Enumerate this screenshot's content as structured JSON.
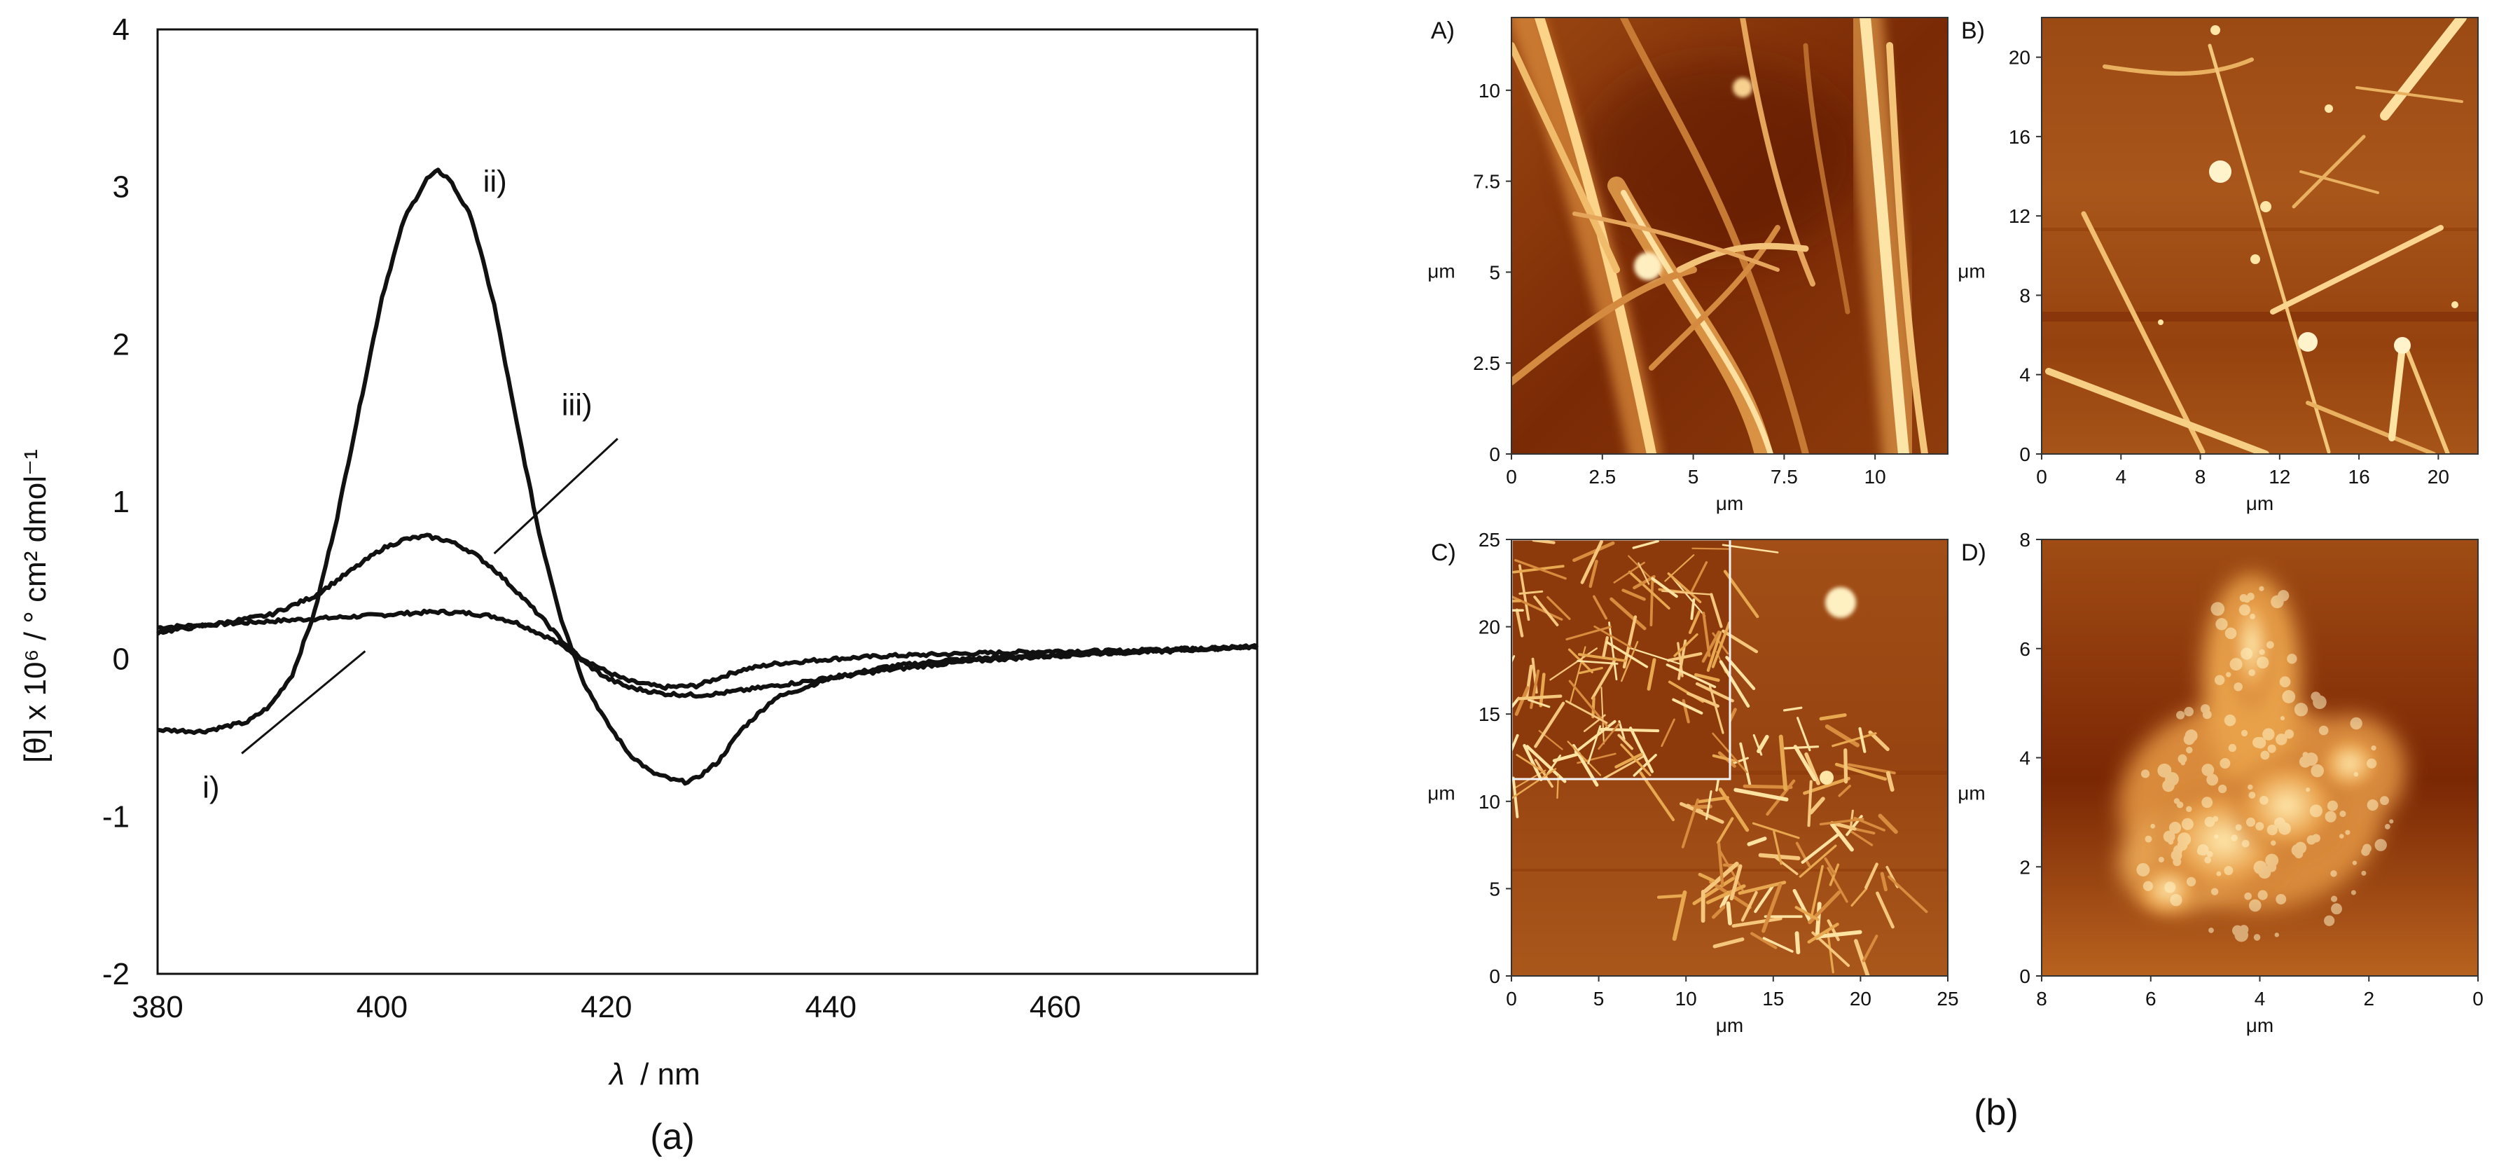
{
  "figure": {
    "panel_a_caption": "(a)",
    "panel_b_caption": "(b)"
  },
  "chart_data": [
    {
      "type": "line",
      "panel": "(a)",
      "xlabel_symbol": "λ",
      "xlabel_unit": "/ nm",
      "ylabel": "[θ] x 10⁶ / ° cm² dmol⁻¹",
      "xlim": [
        380,
        478
      ],
      "ylim": [
        -2,
        4
      ],
      "x_ticks": [
        380,
        400,
        420,
        440,
        460
      ],
      "y_ticks": [
        -2,
        -1,
        0,
        1,
        2,
        3,
        4
      ],
      "grid": false,
      "series_color": "#111111",
      "series": [
        {
          "name": "i)",
          "x": [
            380,
            385,
            390,
            395,
            400,
            402,
            405,
            408,
            410,
            412,
            415,
            418,
            420,
            422,
            425,
            428,
            430,
            432,
            435,
            440,
            445,
            450,
            455,
            460,
            465,
            470,
            475,
            478
          ],
          "y": [
            0.2,
            0.22,
            0.24,
            0.26,
            0.28,
            0.29,
            0.3,
            0.29,
            0.27,
            0.23,
            0.13,
            0.0,
            -0.08,
            -0.14,
            -0.18,
            -0.17,
            -0.12,
            -0.07,
            -0.03,
            0.0,
            0.02,
            0.03,
            0.04,
            0.05,
            0.05,
            0.06,
            0.07,
            0.08
          ]
        },
        {
          "name": "ii)",
          "x": [
            380,
            384,
            388,
            390,
            392,
            394,
            396,
            398,
            400,
            402,
            404,
            405,
            406,
            408,
            410,
            412,
            414,
            416,
            418,
            420,
            422,
            424,
            426,
            427,
            428,
            430,
            432,
            435,
            440,
            445,
            450,
            455,
            460,
            465,
            470,
            475,
            478
          ],
          "y": [
            -0.45,
            -0.46,
            -0.4,
            -0.3,
            -0.1,
            0.3,
            0.9,
            1.6,
            2.3,
            2.8,
            3.05,
            3.1,
            3.05,
            2.8,
            2.25,
            1.5,
            0.8,
            0.25,
            -0.15,
            -0.4,
            -0.6,
            -0.72,
            -0.77,
            -0.78,
            -0.76,
            -0.65,
            -0.45,
            -0.25,
            -0.12,
            -0.05,
            -0.01,
            0.01,
            0.03,
            0.04,
            0.05,
            0.07,
            0.08
          ]
        },
        {
          "name": "iii)",
          "x": [
            380,
            385,
            390,
            394,
            398,
            400,
            402,
            404,
            406,
            408,
            410,
            412,
            414,
            416,
            418,
            420,
            422,
            425,
            428,
            430,
            433,
            436,
            440,
            445,
            450,
            455,
            460,
            465,
            470,
            475,
            478
          ],
          "y": [
            0.17,
            0.22,
            0.28,
            0.4,
            0.6,
            0.7,
            0.76,
            0.78,
            0.75,
            0.68,
            0.57,
            0.43,
            0.28,
            0.12,
            -0.02,
            -0.12,
            -0.18,
            -0.22,
            -0.23,
            -0.22,
            -0.19,
            -0.16,
            -0.12,
            -0.07,
            -0.03,
            0.0,
            0.02,
            0.04,
            0.06,
            0.07,
            0.08
          ]
        }
      ]
    },
    {
      "type": "heatmap",
      "panel": "A)",
      "xlabel": "μm",
      "ylabel": "μm",
      "xlim": [
        0,
        12
      ],
      "ylim": [
        0,
        12
      ],
      "x_ticks": [
        "0",
        "2.5",
        "5",
        "7.5",
        "10"
      ],
      "y_ticks": [
        "0",
        "2.5",
        "5",
        "7.5",
        "10"
      ],
      "morphology": "dense fibrils"
    },
    {
      "type": "heatmap",
      "panel": "B)",
      "xlabel": "μm",
      "ylabel": "μm",
      "xlim": [
        0,
        22
      ],
      "ylim": [
        0,
        22
      ],
      "x_ticks": [
        "0",
        "4",
        "8",
        "12",
        "16",
        "20"
      ],
      "y_ticks": [
        "0",
        "4",
        "8",
        "12",
        "16",
        "20"
      ],
      "morphology": "long needles"
    },
    {
      "type": "heatmap",
      "panel": "C)",
      "xlabel": "μm",
      "ylabel": "μm",
      "xlim": [
        0,
        25
      ],
      "ylim": [
        0,
        25
      ],
      "x_ticks": [
        "0",
        "5",
        "10",
        "15",
        "20",
        "25"
      ],
      "y_ticks": [
        "0",
        "5",
        "10",
        "15",
        "20",
        "25"
      ],
      "inset_x_ticks": [
        "0",
        "5",
        "10"
      ],
      "morphology": "short fibril network with inset"
    },
    {
      "type": "heatmap",
      "panel": "D)",
      "xlabel": "μm",
      "ylabel": "μm",
      "xlim": [
        8,
        0
      ],
      "ylim": [
        0,
        8
      ],
      "x_ticks": [
        "8",
        "6",
        "4",
        "2",
        "0"
      ],
      "y_ticks": [
        "0",
        "2",
        "4",
        "6",
        "8"
      ],
      "morphology": "aggregate cluster"
    }
  ],
  "colors": {
    "afm_dark": "#6e2200",
    "afm_mid": "#b85a16",
    "afm_bright": "#ffe6a6",
    "line": "#111111"
  }
}
